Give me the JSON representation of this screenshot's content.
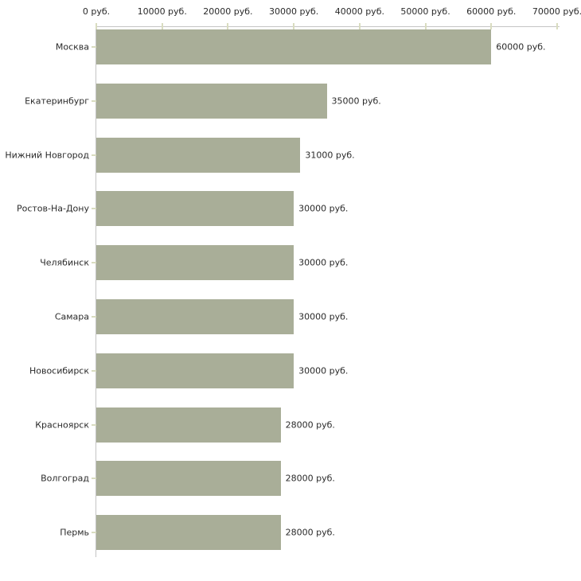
{
  "chart_data": {
    "type": "bar",
    "orientation": "horizontal",
    "title": "",
    "xlabel": "",
    "ylabel": "",
    "unit": "руб.",
    "categories": [
      "Москва",
      "Екатеринбург",
      "Нижний Новгород",
      "Ростов-На-Дону",
      "Челябинск",
      "Самара",
      "Новосибирск",
      "Красноярск",
      "Волгоград",
      "Пермь"
    ],
    "values": [
      60000,
      35000,
      31000,
      30000,
      30000,
      30000,
      30000,
      28000,
      28000,
      28000
    ],
    "value_labels": [
      "60000 руб.",
      "35000 руб.",
      "31000 руб.",
      "30000 руб.",
      "30000 руб.",
      "30000 руб.",
      "30000 руб.",
      "28000 руб.",
      "28000 руб.",
      "28000 руб."
    ],
    "x_ticks": [
      0,
      10000,
      20000,
      30000,
      40000,
      50000,
      60000,
      70000
    ],
    "x_tick_labels": [
      "0 руб.",
      "10000 руб.",
      "20000 руб.",
      "30000 руб.",
      "40000 руб.",
      "50000 руб.",
      "60000 руб.",
      "70000 руб."
    ],
    "xlim": [
      0,
      70000
    ],
    "grid": false,
    "legend": null,
    "colors": {
      "bar": "#a9ae98",
      "axis_line": "#c4c4c4",
      "tick": "#d9dcc0",
      "text": "#2a2a2a",
      "background": "#ffffff"
    }
  }
}
